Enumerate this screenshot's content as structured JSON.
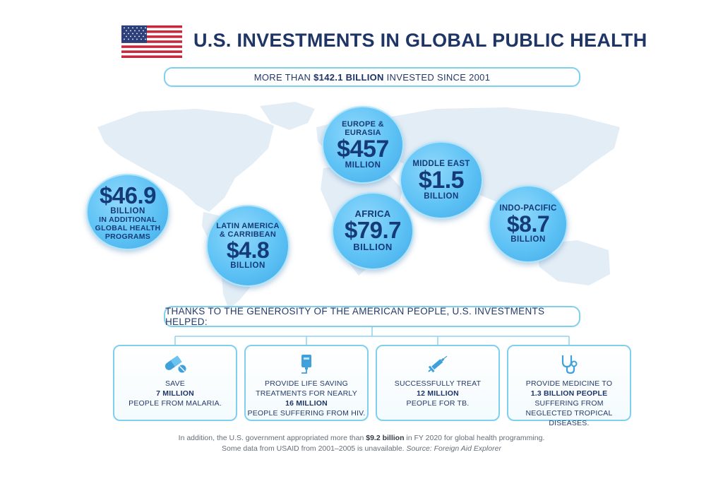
{
  "header": {
    "title": "U.S. INVESTMENTS IN GLOBAL PUBLIC HEALTH",
    "flag_icon": "us-flag-icon"
  },
  "summary": {
    "prefix": "MORE THAN ",
    "amount": "$142.1 BILLION",
    "suffix": " INVESTED SINCE 2001"
  },
  "regions": [
    {
      "label": "",
      "amount": "$46.9",
      "unit": "BILLION",
      "sub": "IN ADDITIONAL GLOBAL HEALTH PROGRAMS"
    },
    {
      "label": "LATIN AMERICA & CARRIBEAN",
      "amount": "$4.8",
      "unit": "BILLION"
    },
    {
      "label": "EUROPE & EURASIA",
      "amount": "$457",
      "unit": "MILLION"
    },
    {
      "label": "AFRICA",
      "amount": "$79.7",
      "unit": "BILLION"
    },
    {
      "label": "MIDDLE EAST",
      "amount": "$1.5",
      "unit": "BILLION"
    },
    {
      "label": "INDO-PACIFIC",
      "amount": "$8.7",
      "unit": "BILLION"
    }
  ],
  "thanks": "THANKS TO THE GENEROSITY OF THE AMERICAN PEOPLE, U.S. INVESTMENTS HELPED:",
  "outcomes": [
    {
      "icon": "pill-icon",
      "line1": "SAVE",
      "highlight": "7 MILLION",
      "line3": "PEOPLE FROM MALARIA."
    },
    {
      "icon": "iv-bag-icon",
      "line1": "PROVIDE LIFE SAVING TREATMENTS FOR NEARLY",
      "highlight": "16 MILLION",
      "line3": "PEOPLE SUFFERING FROM HIV."
    },
    {
      "icon": "syringe-icon",
      "line1": "SUCCESSFULLY TREAT",
      "highlight": "12 MILLION",
      "line3": "PEOPLE FOR TB."
    },
    {
      "icon": "stethoscope-icon",
      "line1": "PROVIDE MEDICINE TO",
      "highlight": "1.3 BILLION PEOPLE",
      "line3": "SUFFERING FROM NEGLECTED TROPICAL DISEASES."
    }
  ],
  "footnote": {
    "l1_pre": "In addition, the U.S. government appropriated more than ",
    "l1_bold": "$9.2 billion",
    "l1_post": " in FY 2020 for global health programming.",
    "l2_pre": "Some data from USAID from 2001–2005 is unavailable. ",
    "l2_italic": "Source: Foreign Aid Explorer"
  },
  "colors": {
    "accent": "#5ec2f5",
    "navy": "#1e3565",
    "border": "#7fd0ee",
    "map": "#e4eef6"
  }
}
